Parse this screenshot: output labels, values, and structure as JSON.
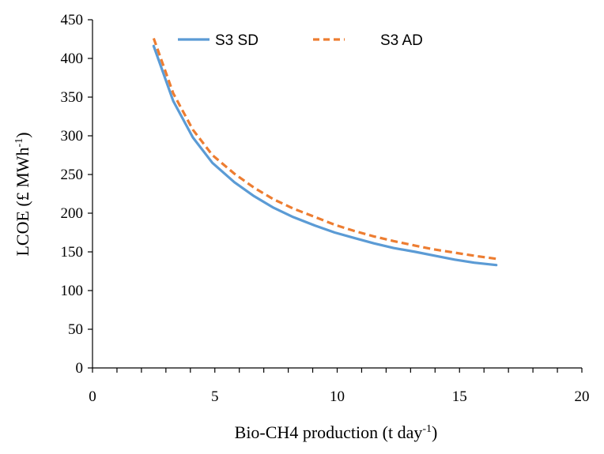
{
  "chart_data": {
    "type": "line",
    "title": "",
    "xlabel": "Bio-CH4 production (t day",
    "xlabel_sup": "-1",
    "xlabel_end": ")",
    "ylabel": "LCOE (£ MWh",
    "ylabel_sup": "-1",
    "ylabel_end": ")",
    "xlim": [
      0,
      20
    ],
    "ylim": [
      0,
      450
    ],
    "x_ticks": [
      0,
      5,
      10,
      15,
      20
    ],
    "y_ticks": [
      0,
      50,
      100,
      150,
      200,
      250,
      300,
      350,
      400,
      450
    ],
    "x_minor_step": 1,
    "grid": false,
    "legend_position": "top",
    "series": [
      {
        "name": "S3 SD",
        "color": "#5b9bd5",
        "style": "solid",
        "x": [
          2.5,
          3.3,
          4.1,
          4.9,
          5.8,
          6.6,
          7.4,
          8.2,
          9.1,
          9.9,
          10.7,
          11.5,
          12.3,
          13.2,
          14.0,
          14.8,
          15.6,
          16.5
        ],
        "y": [
          416,
          345,
          298,
          265,
          240,
          222,
          207,
          195,
          184,
          175,
          168,
          161,
          155,
          150,
          145,
          140,
          136,
          133
        ]
      },
      {
        "name": "S3 AD",
        "color": "#ed7d31",
        "style": "dashed",
        "x": [
          2.5,
          3.3,
          4.1,
          4.9,
          5.8,
          6.6,
          7.4,
          8.2,
          9.1,
          9.9,
          10.7,
          11.5,
          12.3,
          13.2,
          14.0,
          14.8,
          15.6,
          16.5
        ],
        "y": [
          426,
          355,
          308,
          275,
          251,
          233,
          218,
          206,
          195,
          185,
          177,
          170,
          164,
          158,
          153,
          149,
          145,
          141
        ]
      }
    ]
  }
}
